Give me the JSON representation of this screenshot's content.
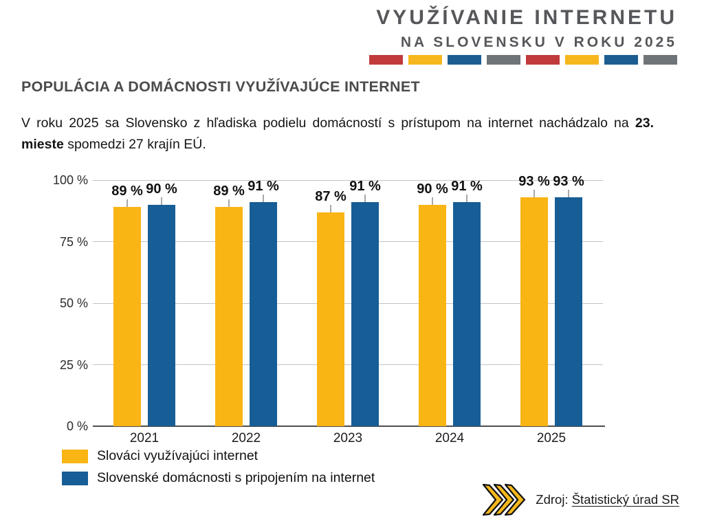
{
  "header": {
    "title_line1": "VYUŽÍVANIE INTERNETU",
    "title_line2": "NA SLOVENSKU V ROKU 2025",
    "strip_colors": [
      "#C13B3C",
      "#F6B71E",
      "#1C5D91",
      "#6F7478",
      "#C13B3C",
      "#F6B71E",
      "#1C5D91",
      "#6F7478"
    ]
  },
  "section": {
    "heading": "POPULÁCIA A DOMÁCNOSTI VYUŽÍVAJÚCE INTERNET",
    "paragraph_pre": "V roku 2025 sa Slovensko z hľadiska podielu domácností s prístupom na internet nachádzalo na ",
    "paragraph_bold": "23. mieste",
    "paragraph_post": " spomedzi 27 krajín EÚ."
  },
  "chart_data": {
    "type": "bar",
    "categories": [
      "2021",
      "2022",
      "2023",
      "2024",
      "2025"
    ],
    "series": [
      {
        "name": "Slováci využívajúci internet",
        "color": "#F9B514",
        "values": [
          89,
          89,
          87,
          90,
          93
        ]
      },
      {
        "name": "Slovenské domácnosti s pripojením na internet",
        "color": "#175D96",
        "values": [
          90,
          91,
          91,
          91,
          93
        ]
      }
    ],
    "title": "",
    "xlabel": "",
    "ylabel": "",
    "ylim": [
      0,
      100
    ],
    "y_ticks": [
      0,
      25,
      50,
      75,
      100
    ],
    "y_tick_suffix": " %",
    "value_label_suffix": " %",
    "grid": true,
    "legend_position": "bottom-left"
  },
  "source": {
    "prefix": "Zdroj: ",
    "link_text": "Štatistický úrad SR"
  },
  "colors": {
    "accent_yellow": "#F9B514",
    "accent_blue": "#175D96",
    "accent_red": "#C13B3C",
    "accent_gray": "#6F7478",
    "title_gray": "#56575A",
    "heading_gray": "#4A4B4D",
    "arrow_yellow": "#F5B81C"
  }
}
